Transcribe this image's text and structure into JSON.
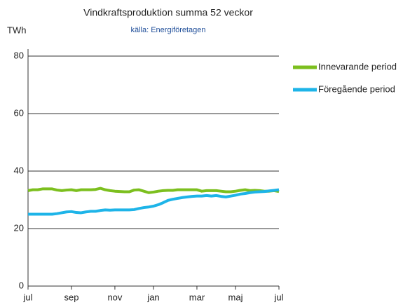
{
  "chart_data": {
    "type": "line",
    "title": "Vindkraftsproduktion  summa 52 veckor",
    "subtitle": "källa: Energiföretagen",
    "y_label": "TWh",
    "categories": [
      "jul",
      null,
      null,
      null,
      null,
      null,
      null,
      null,
      null,
      "sep",
      null,
      null,
      null,
      null,
      null,
      null,
      null,
      null,
      "nov",
      null,
      null,
      null,
      null,
      null,
      null,
      null,
      "jan",
      null,
      null,
      null,
      null,
      null,
      null,
      null,
      null,
      "mar",
      null,
      null,
      null,
      null,
      null,
      null,
      null,
      "maj",
      null,
      null,
      null,
      null,
      null,
      null,
      null,
      null,
      "jul"
    ],
    "series": [
      {
        "name": "Innevarande period",
        "color": "#7cbf1e",
        "values": [
          33.2,
          33.5,
          33.5,
          33.8,
          33.8,
          33.8,
          33.4,
          33.2,
          33.4,
          33.5,
          33.2,
          33.5,
          33.5,
          33.5,
          33.6,
          34.0,
          33.5,
          33.2,
          33.0,
          32.9,
          32.8,
          32.8,
          33.4,
          33.5,
          33.0,
          32.5,
          32.7,
          33.0,
          33.2,
          33.3,
          33.3,
          33.5,
          33.5,
          33.5,
          33.5,
          33.5,
          33.0,
          33.2,
          33.2,
          33.2,
          33.0,
          32.8,
          32.8,
          33.0,
          33.3,
          33.5,
          33.2,
          33.3,
          33.2,
          33.0,
          33.0,
          33.2,
          32.9
        ]
      },
      {
        "name": "Föregående period",
        "color": "#1eb4e8",
        "values": [
          25.0,
          25.0,
          25.0,
          25.0,
          25.0,
          25.0,
          25.2,
          25.5,
          25.8,
          25.9,
          25.6,
          25.5,
          25.8,
          26.0,
          26.0,
          26.3,
          26.5,
          26.4,
          26.5,
          26.5,
          26.5,
          26.5,
          26.6,
          27.0,
          27.3,
          27.5,
          27.8,
          28.3,
          29.0,
          29.8,
          30.2,
          30.5,
          30.8,
          31.0,
          31.2,
          31.3,
          31.3,
          31.5,
          31.3,
          31.5,
          31.2,
          31.0,
          31.3,
          31.6,
          32.0,
          32.2,
          32.5,
          32.7,
          32.8,
          32.9,
          33.1,
          33.3,
          33.5
        ]
      }
    ],
    "ylim": [
      0,
      80
    ],
    "yticks": [
      0,
      20,
      40,
      60,
      80
    ],
    "grid": true,
    "legend": "right"
  }
}
